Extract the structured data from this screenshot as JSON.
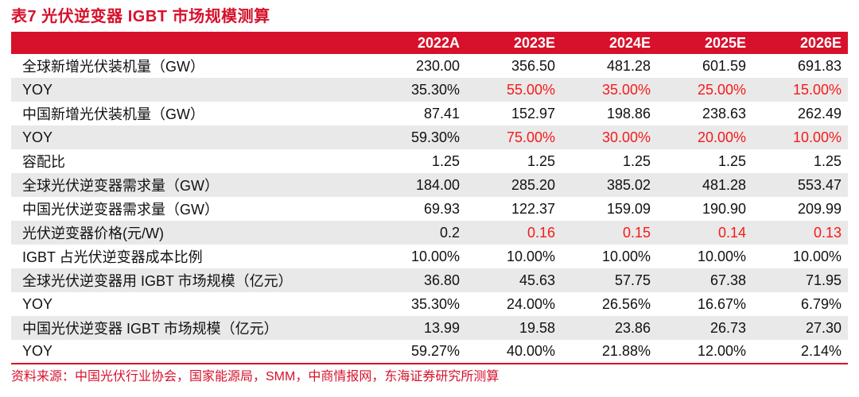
{
  "title": "表7  光伏逆变器 IGBT 市场规模测算",
  "source_note": "资料来源：中国光伏行业协会，国家能源局，SMM，中商情报网，东海证券研究所测算",
  "colors": {
    "accent_red": "#d7112b",
    "highlight_number_red": "#f61a1a",
    "alt_row_gray": "#e9e9e9",
    "header_text": "#ffffff",
    "body_text": "#111111"
  },
  "chart_data": {
    "type": "table",
    "columns": [
      "",
      "2022A",
      "2023E",
      "2024E",
      "2025E",
      "2026E"
    ],
    "rows": [
      {
        "label": "全球新增光伏装机量（GW）",
        "values": [
          "230.00",
          "356.50",
          "481.28",
          "601.59",
          "691.83"
        ],
        "red_cols": []
      },
      {
        "label": "YOY",
        "values": [
          "35.30%",
          "55.00%",
          "35.00%",
          "25.00%",
          "15.00%"
        ],
        "red_cols": [
          1,
          2,
          3,
          4
        ]
      },
      {
        "label": "中国新增光伏装机量（GW）",
        "values": [
          "87.41",
          "152.97",
          "198.86",
          "238.63",
          "262.49"
        ],
        "red_cols": []
      },
      {
        "label": "YOY",
        "values": [
          "59.30%",
          "75.00%",
          "30.00%",
          "20.00%",
          "10.00%"
        ],
        "red_cols": [
          1,
          2,
          3,
          4
        ]
      },
      {
        "label": "容配比",
        "values": [
          "1.25",
          "1.25",
          "1.25",
          "1.25",
          "1.25"
        ],
        "red_cols": []
      },
      {
        "label": "全球光伏逆变器需求量（GW）",
        "values": [
          "184.00",
          "285.20",
          "385.02",
          "481.28",
          "553.47"
        ],
        "red_cols": []
      },
      {
        "label": "中国光伏逆变器需求量（GW）",
        "values": [
          "69.93",
          "122.37",
          "159.09",
          "190.90",
          "209.99"
        ],
        "red_cols": []
      },
      {
        "label": "光伏逆变器价格(元/W)",
        "values": [
          "0.2",
          "0.16",
          "0.15",
          "0.14",
          "0.13"
        ],
        "red_cols": [
          1,
          2,
          3,
          4
        ]
      },
      {
        "label": "IGBT 占光伏逆变器成本比例",
        "values": [
          "10.00%",
          "10.00%",
          "10.00%",
          "10.00%",
          "10.00%"
        ],
        "red_cols": []
      },
      {
        "label": "全球光伏逆变器用 IGBT 市场规模（亿元）",
        "values": [
          "36.80",
          "45.63",
          "57.75",
          "67.38",
          "71.95"
        ],
        "red_cols": []
      },
      {
        "label": "YOY",
        "values": [
          "35.30%",
          "24.00%",
          "26.56%",
          "16.67%",
          "6.79%"
        ],
        "red_cols": []
      },
      {
        "label": "中国光伏逆变器 IGBT 市场规模（亿元）",
        "values": [
          "13.99",
          "19.58",
          "23.86",
          "26.73",
          "27.30"
        ],
        "red_cols": []
      },
      {
        "label": "YOY",
        "values": [
          "59.27%",
          "40.00%",
          "21.88%",
          "12.00%",
          "2.14%"
        ],
        "red_cols": []
      }
    ]
  }
}
